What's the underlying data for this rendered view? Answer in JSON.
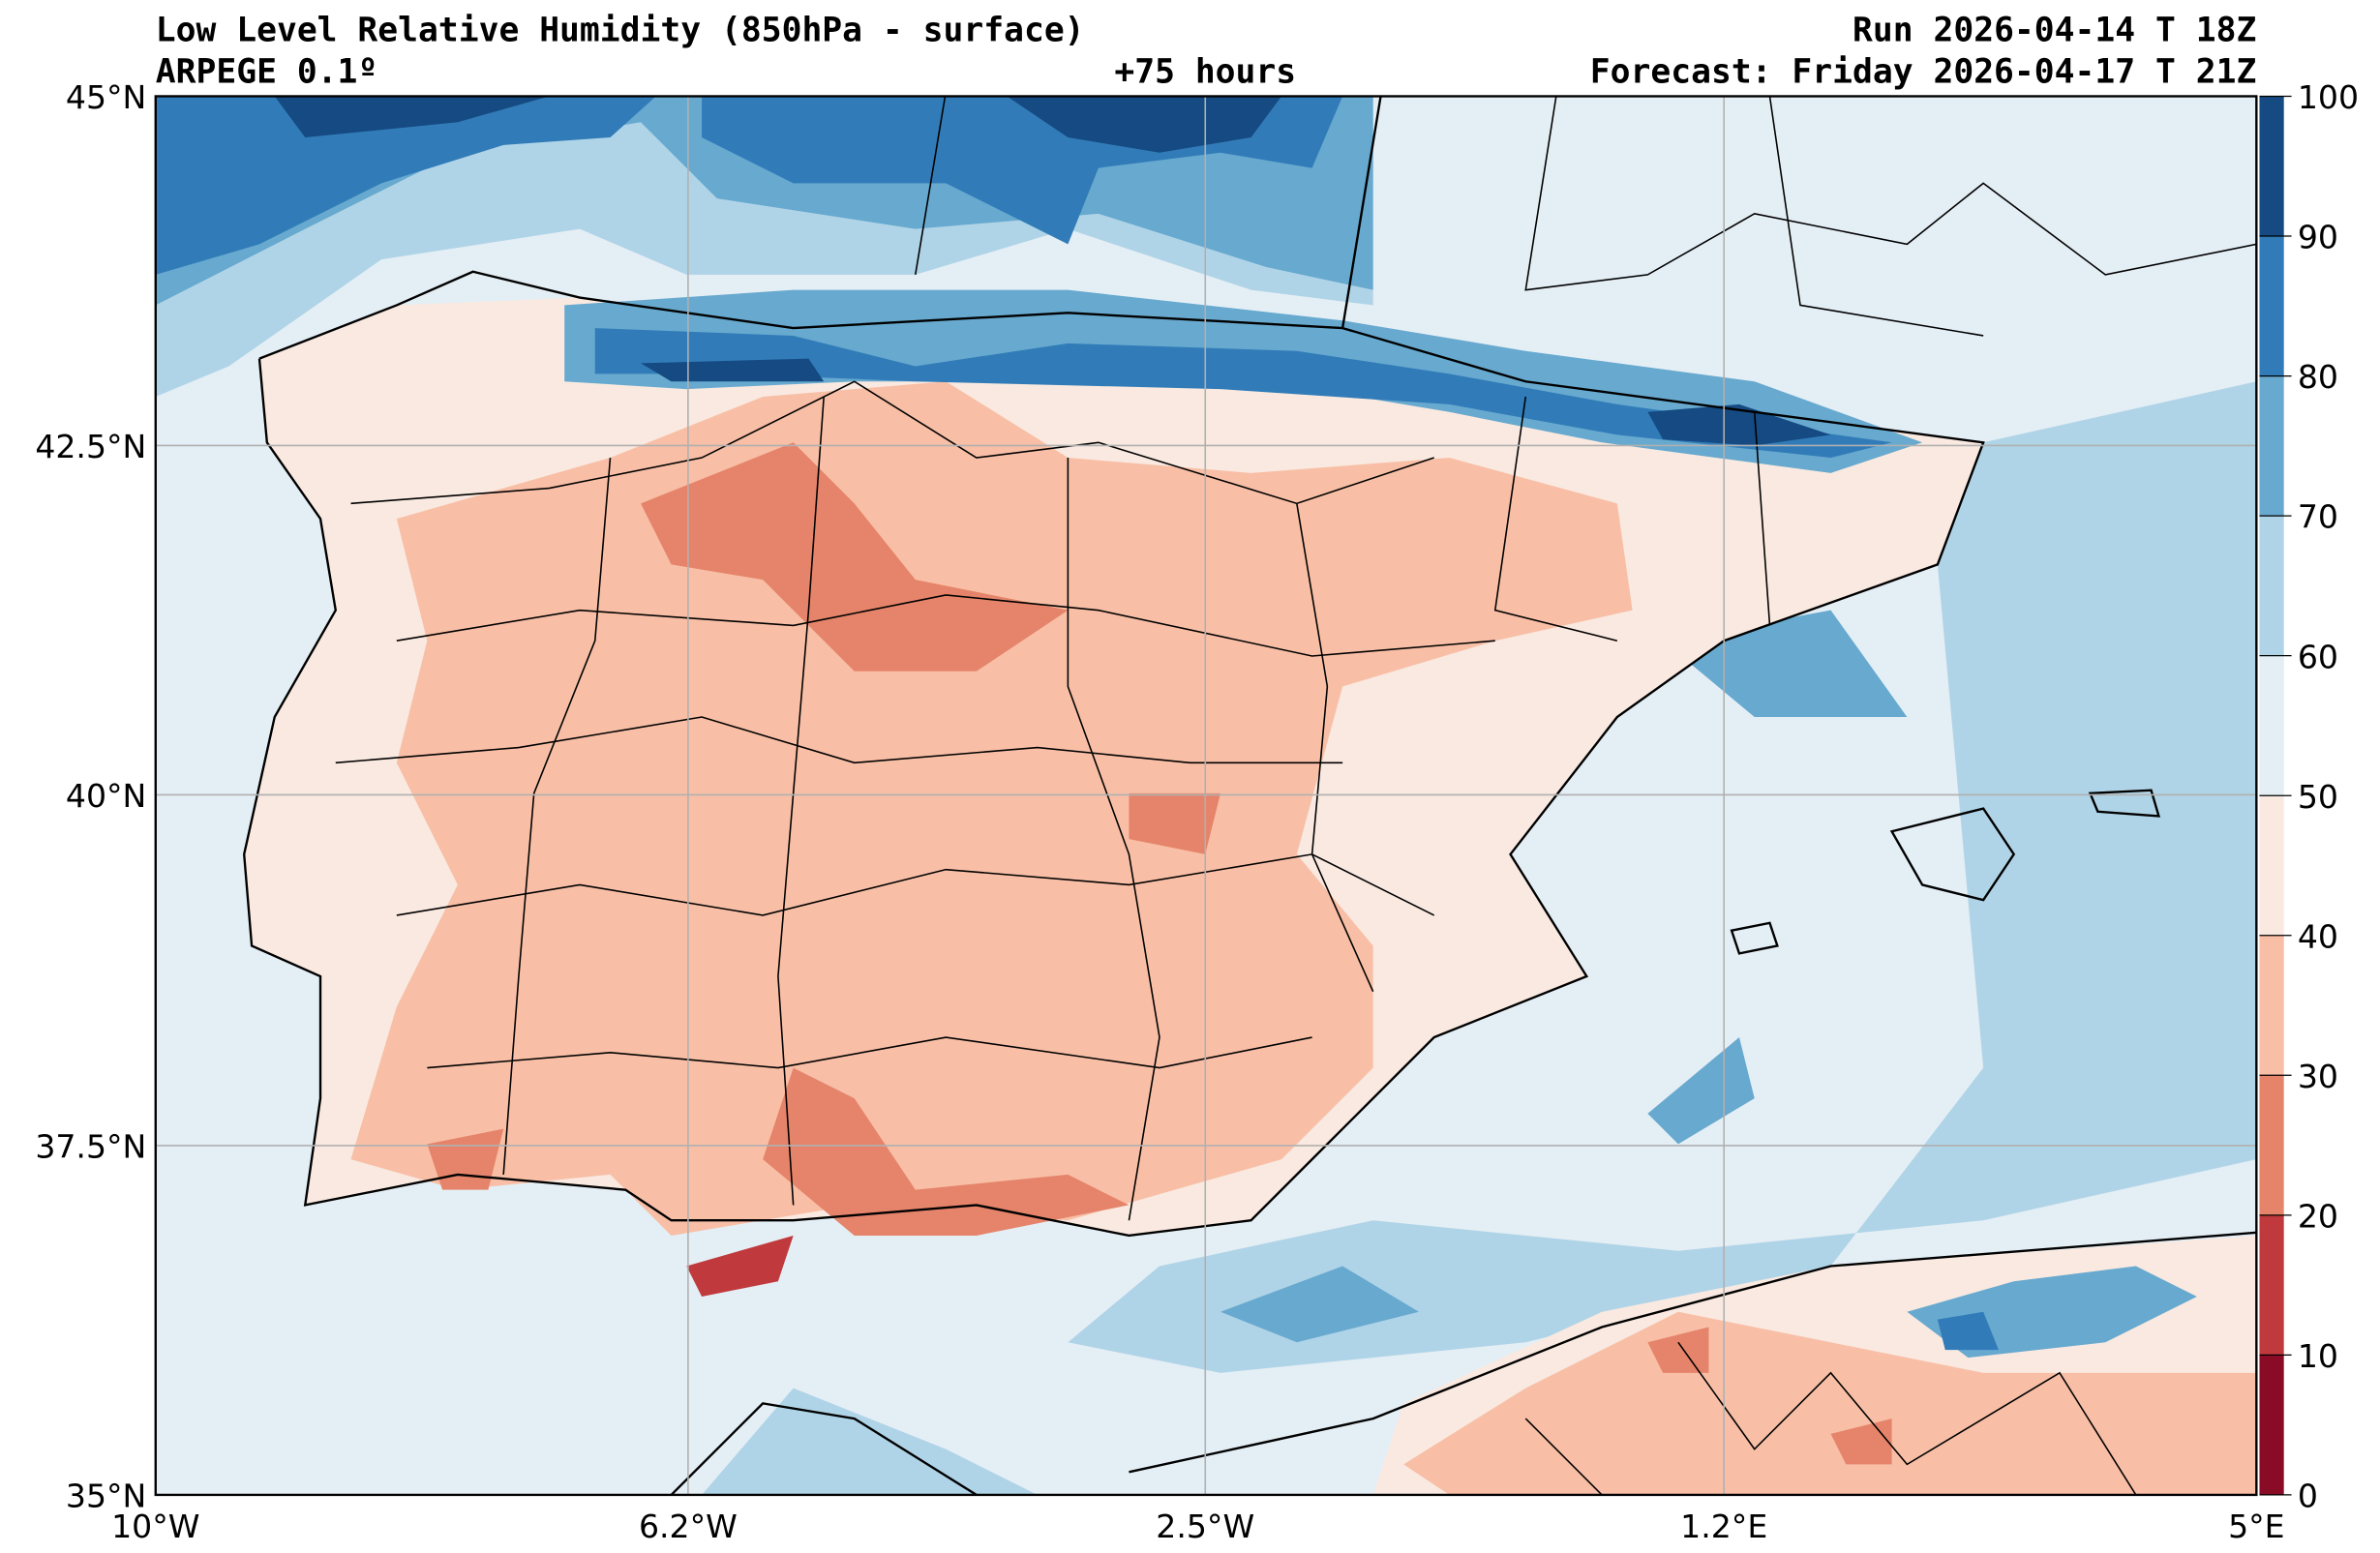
{
  "header": {
    "title": "Low Level Relative Humidity (850hPa - surface)",
    "model": "ARPEGE 0.1º",
    "lead_time": "+75 hours",
    "run": "Run 2026-04-14 T 18Z",
    "forecast": "Forecast: Friday 2026-04-17 T 21Z"
  },
  "map": {
    "lat_labels": [
      "45°N",
      "42.5°N",
      "40°N",
      "37.5°N",
      "35°N"
    ],
    "lon_labels": [
      "10°W",
      "6.2°W",
      "2.5°W",
      "1.2°E",
      "5°E"
    ]
  },
  "colorbar": {
    "levels": [
      "0",
      "10",
      "20",
      "30",
      "40",
      "50",
      "60",
      "70",
      "80",
      "90",
      "100"
    ],
    "colors": [
      "#8a0b25",
      "#c0393c",
      "#e5846a",
      "#f8bfa6",
      "#f9e9e0",
      "#e4eef5",
      "#b0d4e7",
      "#67a9cf",
      "#317cb8",
      "#154a82"
    ]
  }
}
